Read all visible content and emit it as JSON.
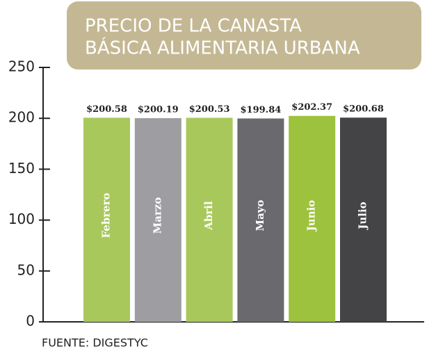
{
  "chart_data": {
    "type": "bar",
    "title": [
      "PRECIO DE LA CANASTA",
      "BÁSICA ALIMENTARIA URBANA"
    ],
    "categories": [
      "Febrero",
      "Marzo",
      "Abril",
      "Mayo",
      "Junio",
      "Julio"
    ],
    "values": [
      200.58,
      200.19,
      200.53,
      199.84,
      202.37,
      200.68
    ],
    "value_labels": [
      "$200.58",
      "$200.19",
      "$200.53",
      "$199.84",
      "$202.37",
      "$200.68"
    ],
    "colors": [
      "#a9c85c",
      "#9e9da2",
      "#a9c85c",
      "#6a696e",
      "#9dc23d",
      "#444346"
    ],
    "ylim": [
      0,
      250
    ],
    "yticks": [
      0,
      50,
      100,
      150,
      200,
      250
    ],
    "source": "FUENTE: DIGESTYC"
  }
}
